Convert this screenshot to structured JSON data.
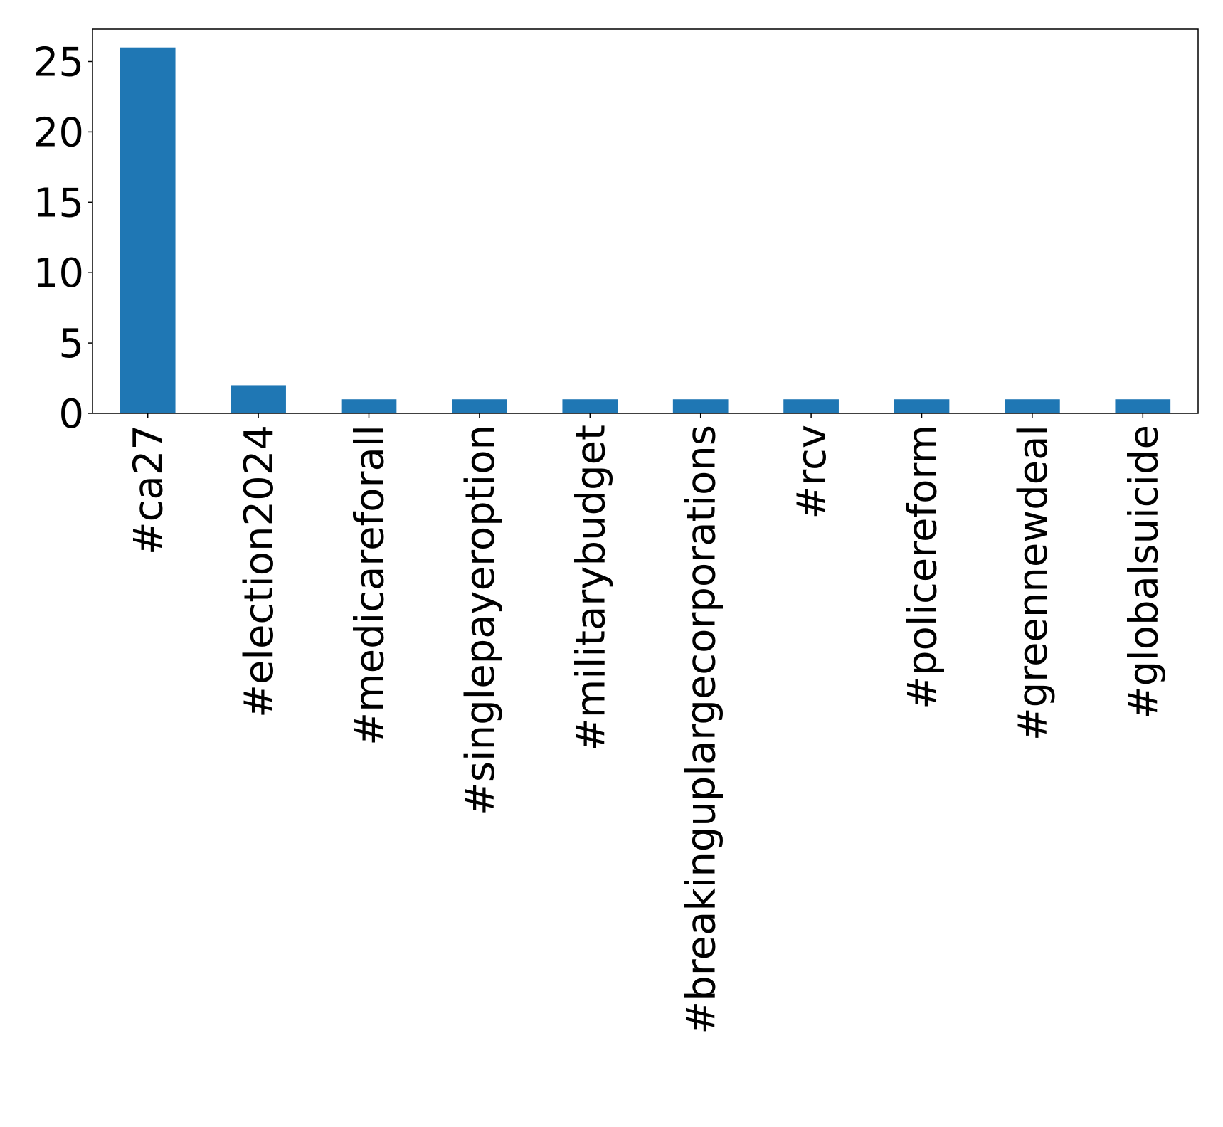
{
  "chart_data": {
    "type": "bar",
    "categories": [
      "#ca27",
      "#election2024",
      "#medicareforall",
      "#singlepayeroption",
      "#militarybudget",
      "#breakinguplargecorporations",
      "#rcv",
      "#policereform",
      "#greennewdeal",
      "#globalsuicide"
    ],
    "values": [
      26,
      2,
      1,
      1,
      1,
      1,
      1,
      1,
      1,
      1
    ],
    "ylim": [
      0,
      27.3
    ],
    "yticks": [
      0,
      5,
      10,
      15,
      20,
      25
    ],
    "title": "",
    "xlabel": "",
    "ylabel": "",
    "x_label_rotation": "vertical",
    "grid": false,
    "legend": "none",
    "bar_color": "#1f77b4"
  }
}
